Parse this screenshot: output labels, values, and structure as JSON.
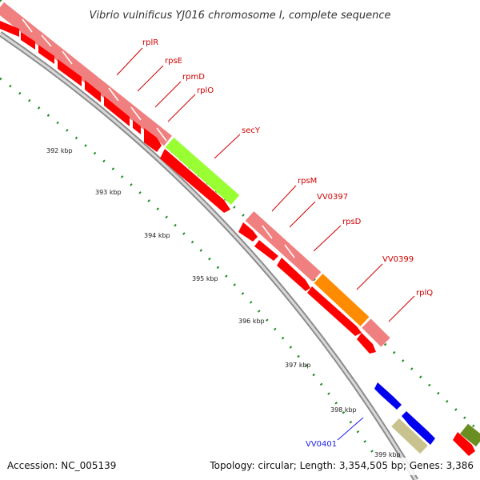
{
  "title": "Vibrio vulnificus YJ016 chromosome I, complete sequence",
  "footer": {
    "accession": "Accession: NC_005139",
    "stats": "Topology: circular; Length: 3,354,505 bp; Genes: 3,386"
  },
  "ticks": [
    "392 kbp",
    "393 kbp",
    "394 kbp",
    "395 kbp",
    "396 kbp",
    "397 kbp",
    "398 kbp",
    "399 kbp"
  ],
  "gene_labels": [
    "rplR",
    "rpsE",
    "rpmD",
    "rplO",
    "secY",
    "rpsM",
    "VV0397",
    "rpsD",
    "VV0399",
    "rplQ",
    "VV0401"
  ],
  "colors": {
    "cds": "#ff0000",
    "rna_light": "#f08080",
    "secY": "#99ff33",
    "orange": "#ff8c00",
    "blue": "#0000ee",
    "khaki": "#c8c38e",
    "olive": "#6b8e23",
    "backbone": "#8c8c8c",
    "dots": "#1e8c1e",
    "label_red": "#d00000",
    "label_blue": "#1a1aee"
  }
}
